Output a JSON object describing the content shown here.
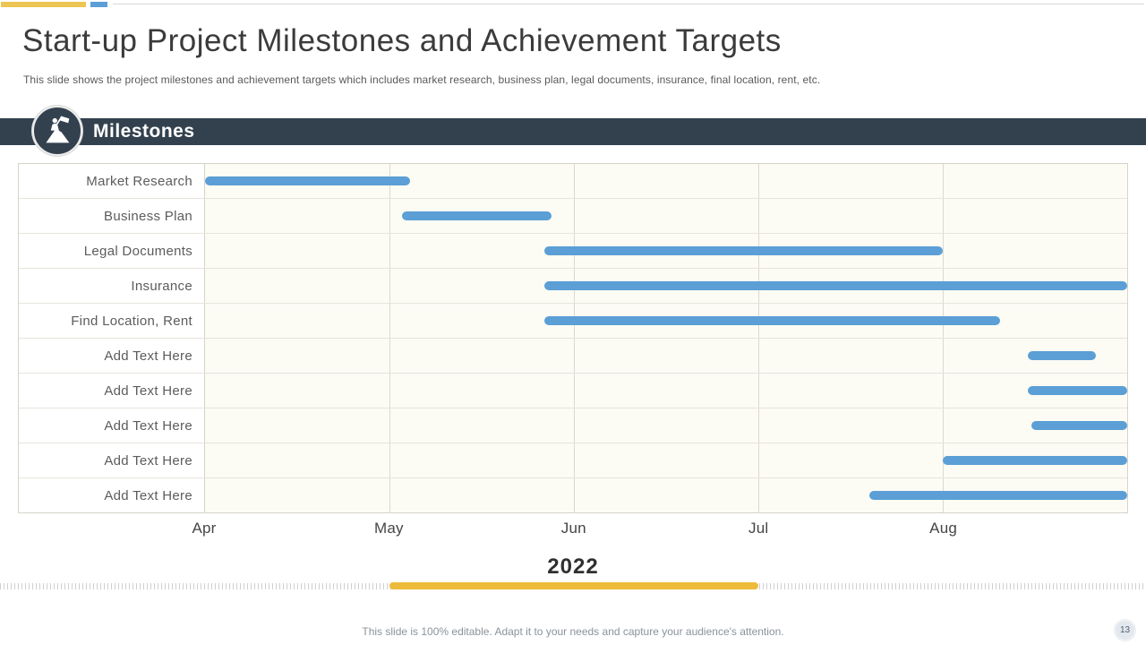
{
  "slide": {
    "title": "Start-up Project Milestones and Achievement Targets",
    "subtitle": "This slide shows the project milestones and achievement targets which includes market research, business plan, legal documents, insurance, final location, rent, etc.",
    "footer_note": "This slide is 100% editable. Adapt it to your needs and capture your audience's attention.",
    "page_number": "13"
  },
  "banner": {
    "label": "Milestones",
    "icon": "flag-person-milestone-icon"
  },
  "year": {
    "label": "2022"
  },
  "colors": {
    "bar_blue": "#5B9FD6",
    "accent_yellow": "#ECC553",
    "underline_gold": "#EDBB3C",
    "banner_navy": "#33414F",
    "plot_background": "#FCFBF4"
  },
  "chart_data": {
    "type": "bar",
    "variant": "gantt-timeline",
    "title": "Milestones",
    "xlabel": "",
    "ylabel": "",
    "x_axis": {
      "unit": "month",
      "tick_labels": [
        "Apr",
        "May",
        "Jun",
        "Jul",
        "Aug"
      ],
      "domain_months": [
        0,
        5
      ],
      "year": "2022",
      "grid": true
    },
    "legend": "none",
    "tasks": [
      {
        "label": "Market Research",
        "start_month": 0.0,
        "end_month": 1.11
      },
      {
        "label": "Business Plan",
        "start_month": 1.07,
        "end_month": 1.88
      },
      {
        "label": "Legal Documents",
        "start_month": 1.84,
        "end_month": 4.0
      },
      {
        "label": "Insurance",
        "start_month": 1.84,
        "end_month": 5.0
      },
      {
        "label": "Find Location, Rent",
        "start_month": 1.84,
        "end_month": 4.31
      },
      {
        "label": "Add Text Here",
        "start_month": 4.46,
        "end_month": 4.83
      },
      {
        "label": "Add Text Here",
        "start_month": 4.46,
        "end_month": 5.0
      },
      {
        "label": "Add Text Here",
        "start_month": 4.48,
        "end_month": 5.0
      },
      {
        "label": "Add Text Here",
        "start_month": 4.0,
        "end_month": 5.0
      },
      {
        "label": "Add Text Here",
        "start_month": 3.6,
        "end_month": 5.0
      }
    ],
    "bar_color": "#5B9FD6"
  }
}
